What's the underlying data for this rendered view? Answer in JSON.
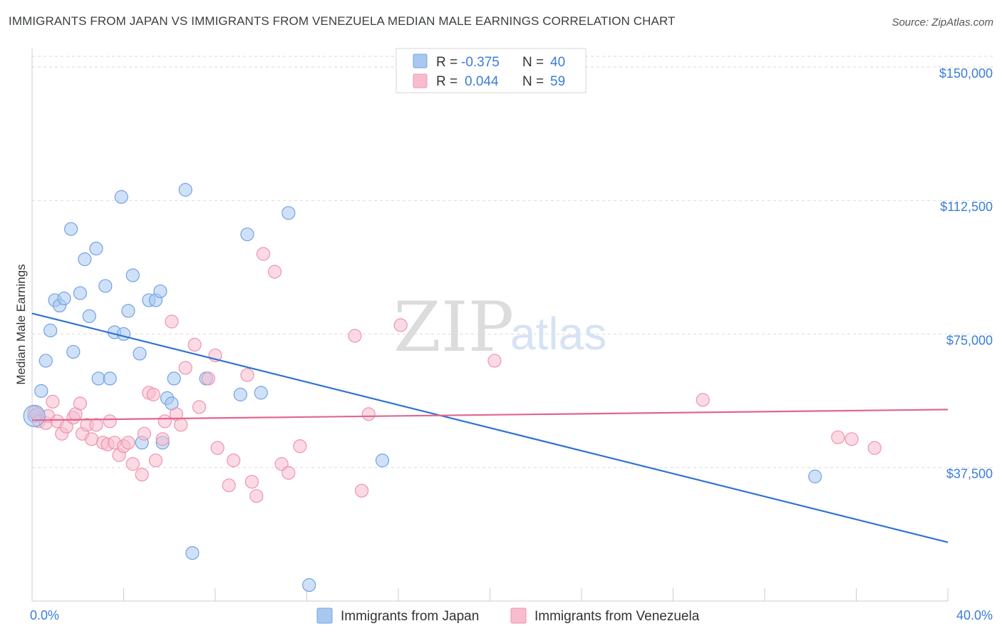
{
  "title": "IMMIGRANTS FROM JAPAN VS IMMIGRANTS FROM VENEZUELA MEDIAN MALE EARNINGS CORRELATION CHART",
  "source": "Source: ZipAtlas.com",
  "watermark": {
    "zip": "ZIP",
    "atlas": "atlas"
  },
  "legend": {
    "r_label": "R =",
    "n_label": "N =",
    "rows": [
      {
        "r": "-0.375",
        "n": "40",
        "color": "#a9c8f0"
      },
      {
        "r": "0.044",
        "n": "59",
        "color": "#f7bccd"
      }
    ]
  },
  "chart_data": {
    "type": "scatter",
    "xlabel": "",
    "ylabel": "Median Male Earnings",
    "xlim": [
      0,
      40
    ],
    "ylim": [
      0,
      153000
    ],
    "x_tick_labels": [
      "0.0%",
      "40.0%"
    ],
    "y_ticks": [
      37500,
      75000,
      112500,
      150000
    ],
    "y_tick_labels": [
      "$37,500",
      "$75,000",
      "$112,500",
      "$150,000"
    ],
    "grid": true,
    "series": [
      {
        "name": "Immigrants from Japan",
        "color": "#6fa3e4",
        "fill": "#a9c8f0",
        "line_color": "#2f74d0",
        "trend": [
          [
            0,
            80800
          ],
          [
            40,
            16500
          ]
        ],
        "points": [
          [
            0.1,
            52000
          ],
          [
            0.4,
            59000
          ],
          [
            0.6,
            67500
          ],
          [
            0.8,
            76000
          ],
          [
            1.0,
            84500
          ],
          [
            1.2,
            83000
          ],
          [
            1.4,
            85000
          ],
          [
            1.7,
            104500
          ],
          [
            1.8,
            70000
          ],
          [
            2.1,
            86500
          ],
          [
            2.3,
            96000
          ],
          [
            2.5,
            80000
          ],
          [
            2.8,
            99000
          ],
          [
            2.9,
            62500
          ],
          [
            3.2,
            88500
          ],
          [
            3.4,
            62500
          ],
          [
            3.6,
            75500
          ],
          [
            3.9,
            113500
          ],
          [
            4.0,
            75000
          ],
          [
            4.2,
            81500
          ],
          [
            4.4,
            91500
          ],
          [
            4.7,
            69500
          ],
          [
            4.8,
            44500
          ],
          [
            5.1,
            84500
          ],
          [
            5.4,
            84500
          ],
          [
            5.6,
            87000
          ],
          [
            5.7,
            44500
          ],
          [
            5.9,
            57000
          ],
          [
            6.1,
            55500
          ],
          [
            6.2,
            62500
          ],
          [
            6.7,
            115500
          ],
          [
            7.0,
            13500
          ],
          [
            7.6,
            62500
          ],
          [
            9.1,
            58000
          ],
          [
            9.4,
            103000
          ],
          [
            10.0,
            58500
          ],
          [
            11.2,
            109000
          ],
          [
            12.1,
            4500
          ],
          [
            15.3,
            39500
          ],
          [
            34.2,
            35000
          ]
        ]
      },
      {
        "name": "Immigrants from Venezuela",
        "color": "#ef93b0",
        "fill": "#f7bccd",
        "line_color": "#e0668f",
        "trend": [
          [
            0,
            50800
          ],
          [
            40,
            53800
          ]
        ],
        "points": [
          [
            0.1,
            53000
          ],
          [
            0.2,
            52500
          ],
          [
            0.3,
            50500
          ],
          [
            0.6,
            50000
          ],
          [
            0.7,
            52000
          ],
          [
            0.9,
            56000
          ],
          [
            1.1,
            50500
          ],
          [
            1.3,
            47000
          ],
          [
            1.5,
            49000
          ],
          [
            1.8,
            51500
          ],
          [
            1.9,
            52500
          ],
          [
            2.1,
            55500
          ],
          [
            2.2,
            47000
          ],
          [
            2.4,
            49500
          ],
          [
            2.6,
            45500
          ],
          [
            2.8,
            49500
          ],
          [
            3.1,
            44500
          ],
          [
            3.3,
            44000
          ],
          [
            3.4,
            50500
          ],
          [
            3.6,
            44500
          ],
          [
            3.8,
            41000
          ],
          [
            4.0,
            43500
          ],
          [
            4.2,
            44500
          ],
          [
            4.4,
            38500
          ],
          [
            4.8,
            35500
          ],
          [
            4.9,
            47000
          ],
          [
            5.1,
            58500
          ],
          [
            5.3,
            58000
          ],
          [
            5.4,
            39500
          ],
          [
            5.7,
            45500
          ],
          [
            5.8,
            50500
          ],
          [
            6.1,
            78500
          ],
          [
            6.3,
            52500
          ],
          [
            6.5,
            49500
          ],
          [
            6.7,
            65500
          ],
          [
            7.1,
            72000
          ],
          [
            7.3,
            54500
          ],
          [
            7.7,
            62500
          ],
          [
            8.0,
            69000
          ],
          [
            8.1,
            43000
          ],
          [
            8.6,
            32500
          ],
          [
            8.8,
            39500
          ],
          [
            9.4,
            63500
          ],
          [
            9.6,
            33500
          ],
          [
            9.8,
            29500
          ],
          [
            10.1,
            97500
          ],
          [
            10.6,
            92500
          ],
          [
            10.9,
            38500
          ],
          [
            11.2,
            36000
          ],
          [
            11.7,
            43500
          ],
          [
            14.1,
            74500
          ],
          [
            14.4,
            31000
          ],
          [
            14.7,
            52500
          ],
          [
            16.1,
            77500
          ],
          [
            20.2,
            67500
          ],
          [
            29.3,
            56500
          ],
          [
            35.2,
            46000
          ],
          [
            35.8,
            45500
          ],
          [
            36.8,
            43000
          ]
        ]
      }
    ]
  }
}
